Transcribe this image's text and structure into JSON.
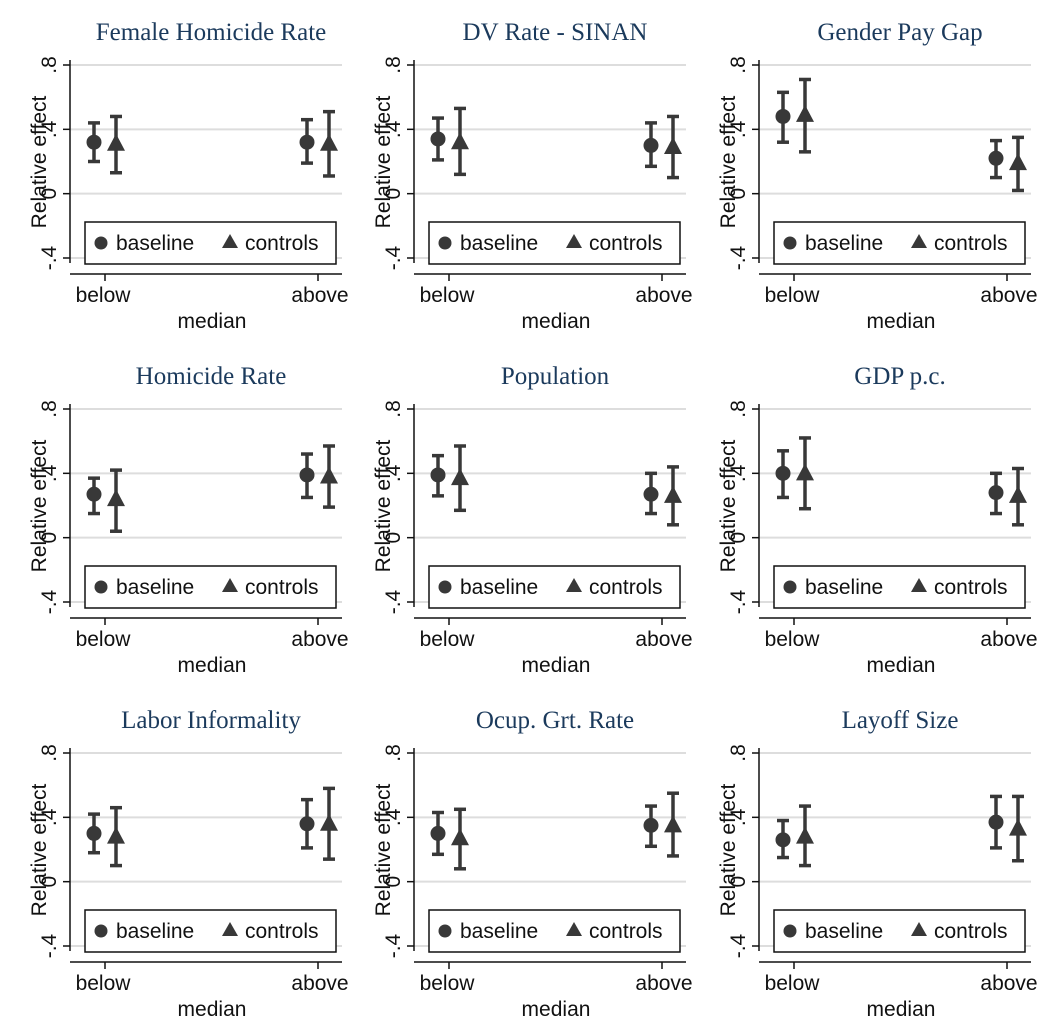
{
  "figure": {
    "marker_color": "#383838",
    "title_color": "#1b3a5c",
    "grid_color": "#dddddd"
  },
  "chart_data": [
    {
      "type": "scatter",
      "title": "Female Homicide Rate",
      "xlabel": "median",
      "ylabel": "Relative effect",
      "categories": [
        "below",
        "above"
      ],
      "yticks": [
        ".8",
        ".4",
        "0",
        "-.4"
      ],
      "ylim": [
        -0.45,
        0.8
      ],
      "grid": true,
      "legend": {
        "position": "bottom-inside",
        "entries": [
          "baseline",
          "controls"
        ]
      },
      "series": [
        {
          "name": "baseline",
          "marker": "circle",
          "values": [
            0.32,
            0.32
          ],
          "ci_low": [
            0.2,
            0.19
          ],
          "ci_high": [
            0.44,
            0.46
          ]
        },
        {
          "name": "controls",
          "marker": "triangle",
          "values": [
            0.31,
            0.31
          ],
          "ci_low": [
            0.13,
            0.11
          ],
          "ci_high": [
            0.48,
            0.51
          ]
        }
      ]
    },
    {
      "type": "scatter",
      "title": "DV Rate - SINAN",
      "xlabel": "median",
      "ylabel": "Relative effect",
      "categories": [
        "below",
        "above"
      ],
      "yticks": [
        ".8",
        ".4",
        "0",
        "-.4"
      ],
      "ylim": [
        -0.45,
        0.8
      ],
      "grid": true,
      "legend": {
        "position": "bottom-inside",
        "entries": [
          "baseline",
          "controls"
        ]
      },
      "series": [
        {
          "name": "baseline",
          "marker": "circle",
          "values": [
            0.34,
            0.3
          ],
          "ci_low": [
            0.21,
            0.17
          ],
          "ci_high": [
            0.47,
            0.44
          ]
        },
        {
          "name": "controls",
          "marker": "triangle",
          "values": [
            0.32,
            0.29
          ],
          "ci_low": [
            0.12,
            0.1
          ],
          "ci_high": [
            0.53,
            0.48
          ]
        }
      ]
    },
    {
      "type": "scatter",
      "title": "Gender Pay Gap",
      "xlabel": "median",
      "ylabel": "Relative effect",
      "categories": [
        "below",
        "above"
      ],
      "yticks": [
        ".8",
        ".4",
        "0",
        "-.4"
      ],
      "ylim": [
        -0.45,
        0.8
      ],
      "grid": true,
      "legend": {
        "position": "bottom-inside",
        "entries": [
          "baseline",
          "controls"
        ]
      },
      "series": [
        {
          "name": "baseline",
          "marker": "circle",
          "values": [
            0.48,
            0.22
          ],
          "ci_low": [
            0.32,
            0.1
          ],
          "ci_high": [
            0.63,
            0.33
          ]
        },
        {
          "name": "controls",
          "marker": "triangle",
          "values": [
            0.49,
            0.19
          ],
          "ci_low": [
            0.26,
            0.02
          ],
          "ci_high": [
            0.71,
            0.35
          ]
        }
      ]
    },
    {
      "type": "scatter",
      "title": "Homicide Rate",
      "xlabel": "median",
      "ylabel": "Relative effect",
      "categories": [
        "below",
        "above"
      ],
      "yticks": [
        ".8",
        ".4",
        "0",
        "-.4"
      ],
      "ylim": [
        -0.45,
        0.8
      ],
      "grid": true,
      "legend": {
        "position": "bottom-inside",
        "entries": [
          "baseline",
          "controls"
        ]
      },
      "series": [
        {
          "name": "baseline",
          "marker": "circle",
          "values": [
            0.27,
            0.39
          ],
          "ci_low": [
            0.15,
            0.25
          ],
          "ci_high": [
            0.37,
            0.52
          ]
        },
        {
          "name": "controls",
          "marker": "triangle",
          "values": [
            0.24,
            0.38
          ],
          "ci_low": [
            0.04,
            0.19
          ],
          "ci_high": [
            0.42,
            0.57
          ]
        }
      ]
    },
    {
      "type": "scatter",
      "title": "Population",
      "xlabel": "median",
      "ylabel": "Relative effect",
      "categories": [
        "below",
        "above"
      ],
      "yticks": [
        ".8",
        ".4",
        "0",
        "-.4"
      ],
      "ylim": [
        -0.45,
        0.8
      ],
      "grid": true,
      "legend": {
        "position": "bottom-inside",
        "entries": [
          "baseline",
          "controls"
        ]
      },
      "series": [
        {
          "name": "baseline",
          "marker": "circle",
          "values": [
            0.39,
            0.27
          ],
          "ci_low": [
            0.26,
            0.15
          ],
          "ci_high": [
            0.51,
            0.4
          ]
        },
        {
          "name": "controls",
          "marker": "triangle",
          "values": [
            0.37,
            0.26
          ],
          "ci_low": [
            0.17,
            0.08
          ],
          "ci_high": [
            0.57,
            0.44
          ]
        }
      ]
    },
    {
      "type": "scatter",
      "title": "GDP p.c.",
      "xlabel": "median",
      "ylabel": "Relative effect",
      "categories": [
        "below",
        "above"
      ],
      "yticks": [
        ".8",
        ".4",
        "0",
        "-.4"
      ],
      "ylim": [
        -0.45,
        0.8
      ],
      "grid": true,
      "legend": {
        "position": "bottom-inside",
        "entries": [
          "baseline",
          "controls"
        ]
      },
      "series": [
        {
          "name": "baseline",
          "marker": "circle",
          "values": [
            0.4,
            0.28
          ],
          "ci_low": [
            0.25,
            0.15
          ],
          "ci_high": [
            0.54,
            0.4
          ]
        },
        {
          "name": "controls",
          "marker": "triangle",
          "values": [
            0.4,
            0.26
          ],
          "ci_low": [
            0.18,
            0.08
          ],
          "ci_high": [
            0.62,
            0.43
          ]
        }
      ]
    },
    {
      "type": "scatter",
      "title": "Labor Informality",
      "xlabel": "median",
      "ylabel": "Relative effect",
      "categories": [
        "below",
        "above"
      ],
      "yticks": [
        ".8",
        ".4",
        "0",
        "-.4"
      ],
      "ylim": [
        -0.45,
        0.8
      ],
      "grid": true,
      "legend": {
        "position": "bottom-inside",
        "entries": [
          "baseline",
          "controls"
        ]
      },
      "series": [
        {
          "name": "baseline",
          "marker": "circle",
          "values": [
            0.3,
            0.36
          ],
          "ci_low": [
            0.18,
            0.21
          ],
          "ci_high": [
            0.42,
            0.51
          ]
        },
        {
          "name": "controls",
          "marker": "triangle",
          "values": [
            0.28,
            0.36
          ],
          "ci_low": [
            0.1,
            0.14
          ],
          "ci_high": [
            0.46,
            0.58
          ]
        }
      ]
    },
    {
      "type": "scatter",
      "title": "Ocup. Grt. Rate",
      "xlabel": "median",
      "ylabel": "Relative effect",
      "categories": [
        "below",
        "above"
      ],
      "yticks": [
        ".8",
        ".4",
        "0",
        "-.4"
      ],
      "ylim": [
        -0.45,
        0.8
      ],
      "grid": true,
      "legend": {
        "position": "bottom-inside",
        "entries": [
          "baseline",
          "controls"
        ]
      },
      "series": [
        {
          "name": "baseline",
          "marker": "circle",
          "values": [
            0.3,
            0.35
          ],
          "ci_low": [
            0.17,
            0.22
          ],
          "ci_high": [
            0.43,
            0.47
          ]
        },
        {
          "name": "controls",
          "marker": "triangle",
          "values": [
            0.27,
            0.35
          ],
          "ci_low": [
            0.08,
            0.16
          ],
          "ci_high": [
            0.45,
            0.55
          ]
        }
      ]
    },
    {
      "type": "scatter",
      "title": "Layoff Size",
      "xlabel": "median",
      "ylabel": "Relative effect",
      "categories": [
        "below",
        "above"
      ],
      "yticks": [
        ".8",
        ".4",
        "0",
        "-.4"
      ],
      "ylim": [
        -0.45,
        0.8
      ],
      "grid": true,
      "legend": {
        "position": "bottom-inside",
        "entries": [
          "baseline",
          "controls"
        ]
      },
      "series": [
        {
          "name": "baseline",
          "marker": "circle",
          "values": [
            0.26,
            0.37
          ],
          "ci_low": [
            0.15,
            0.21
          ],
          "ci_high": [
            0.38,
            0.53
          ]
        },
        {
          "name": "controls",
          "marker": "triangle",
          "values": [
            0.28,
            0.33
          ],
          "ci_low": [
            0.1,
            0.13
          ],
          "ci_high": [
            0.47,
            0.53
          ]
        }
      ]
    }
  ]
}
